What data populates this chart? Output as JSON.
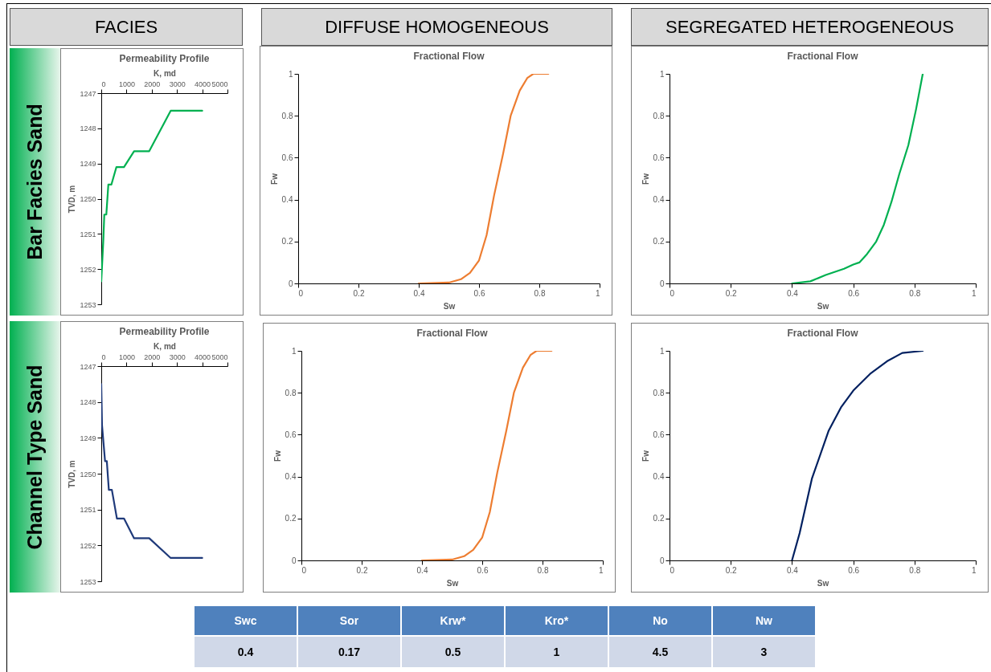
{
  "chart_data": [
    {
      "type": "line",
      "title": "Permeability Profile",
      "xlabel": "K, md",
      "ylabel": "TVD, m",
      "xlim": [
        0,
        5000
      ],
      "xticks": [
        0,
        1000,
        2000,
        3000,
        4000,
        5000
      ],
      "ylim": [
        1253,
        1247
      ],
      "yticks": [
        1247,
        1248,
        1249,
        1250,
        1251,
        1252,
        1253
      ],
      "grid": false,
      "series": [
        {
          "color": "#00b050",
          "x": [
            0,
            80,
            120,
            200,
            280,
            400,
            600,
            900,
            1300,
            1900,
            2750,
            4000
          ],
          "values": [
            1252.35,
            1251.2,
            1250.45,
            1250.45,
            1249.6,
            1249.6,
            1249.1,
            1249.1,
            1248.65,
            1248.65,
            1247.5,
            1247.5
          ]
        }
      ]
    },
    {
      "type": "line",
      "title": "Fractional Flow",
      "xlabel": "Sw",
      "ylabel": "Fw",
      "xlim": [
        0,
        1
      ],
      "xticks": [
        0,
        0.2,
        0.4,
        0.6,
        0.8,
        1
      ],
      "ylim": [
        0,
        1
      ],
      "yticks": [
        0,
        0.2,
        0.4,
        0.6,
        0.8,
        1
      ],
      "grid": false,
      "series": [
        {
          "color": "#ed7d31",
          "x": [
            0.4,
            0.5,
            0.54,
            0.57,
            0.6,
            0.625,
            0.65,
            0.68,
            0.705,
            0.735,
            0.76,
            0.78,
            0.83
          ],
          "values": [
            0,
            0.004,
            0.02,
            0.05,
            0.11,
            0.23,
            0.42,
            0.62,
            0.8,
            0.92,
            0.98,
            1,
            1
          ]
        }
      ]
    },
    {
      "type": "line",
      "title": "Fractional Flow",
      "xlabel": "Sw",
      "ylabel": "Fw",
      "xlim": [
        0,
        1
      ],
      "xticks": [
        0,
        0.2,
        0.4,
        0.6,
        0.8,
        1
      ],
      "ylim": [
        0,
        1
      ],
      "yticks": [
        0,
        0.2,
        0.4,
        0.6,
        0.8,
        1
      ],
      "grid": false,
      "series": [
        {
          "color": "#00b050",
          "x": [
            0.4,
            0.46,
            0.51,
            0.57,
            0.6,
            0.62,
            0.645,
            0.675,
            0.7,
            0.725,
            0.75,
            0.78,
            0.805,
            0.827
          ],
          "values": [
            0,
            0.01,
            0.04,
            0.07,
            0.09,
            0.1,
            0.14,
            0.2,
            0.28,
            0.39,
            0.52,
            0.66,
            0.83,
            1
          ]
        }
      ]
    },
    {
      "type": "line",
      "title": "Permeability Profile",
      "xlabel": "K, md",
      "ylabel": "TVD, m",
      "xlim": [
        0,
        5000
      ],
      "xticks": [
        0,
        1000,
        2000,
        3000,
        4000,
        5000
      ],
      "ylim": [
        1253,
        1247
      ],
      "yticks": [
        1247,
        1248,
        1249,
        1250,
        1251,
        1252,
        1253
      ],
      "grid": false,
      "series": [
        {
          "color": "#1f3a7a",
          "x": [
            0,
            30,
            90,
            150,
            220,
            300,
            420,
            620,
            900,
            1300,
            1900,
            2750,
            4000
          ],
          "values": [
            1247.5,
            1248.65,
            1249.15,
            1249.65,
            1249.65,
            1250.45,
            1250.45,
            1251.25,
            1251.25,
            1251.8,
            1251.8,
            1252.35,
            1252.35
          ]
        }
      ]
    },
    {
      "type": "line",
      "title": "Fractional Flow",
      "xlabel": "Sw",
      "ylabel": "Fw",
      "xlim": [
        0,
        1
      ],
      "xticks": [
        0,
        0.2,
        0.4,
        0.6,
        0.8,
        1
      ],
      "ylim": [
        0,
        1
      ],
      "yticks": [
        0,
        0.2,
        0.4,
        0.6,
        0.8,
        1
      ],
      "grid": false,
      "series": [
        {
          "color": "#ed7d31",
          "x": [
            0.4,
            0.5,
            0.54,
            0.57,
            0.6,
            0.625,
            0.65,
            0.68,
            0.705,
            0.735,
            0.76,
            0.78,
            0.83
          ],
          "values": [
            0,
            0.004,
            0.02,
            0.05,
            0.11,
            0.23,
            0.42,
            0.62,
            0.8,
            0.92,
            0.98,
            1,
            1
          ]
        }
      ]
    },
    {
      "type": "line",
      "title": "Fractional Flow",
      "xlabel": "Sw",
      "ylabel": "Fw",
      "xlim": [
        0,
        1
      ],
      "xticks": [
        0,
        0.2,
        0.4,
        0.6,
        0.8,
        1
      ],
      "ylim": [
        0,
        1
      ],
      "yticks": [
        0,
        0.2,
        0.4,
        0.6,
        0.8,
        1
      ],
      "grid": false,
      "series": [
        {
          "color": "#002060",
          "x": [
            0.4,
            0.425,
            0.465,
            0.52,
            0.56,
            0.6,
            0.655,
            0.71,
            0.76,
            0.827
          ],
          "values": [
            0,
            0.13,
            0.39,
            0.62,
            0.73,
            0.81,
            0.89,
            0.95,
            0.99,
            1
          ]
        }
      ]
    },
    {
      "type": "other",
      "categories": [
        "Swc",
        "Sor",
        "Krw*",
        "Kro*",
        "No",
        "Nw"
      ],
      "values": [
        0.4,
        0.17,
        0.5,
        1,
        4.5,
        3
      ],
      "data_labels": true
    },
    {
      "type": "other",
      "annotations": [
        "FACIES",
        "DIFFUSE HOMOGENEOUS",
        "SEGREGATED HETEROGENEOUS",
        "Bar Facies Sand",
        "Channel Type Sand"
      ]
    }
  ]
}
